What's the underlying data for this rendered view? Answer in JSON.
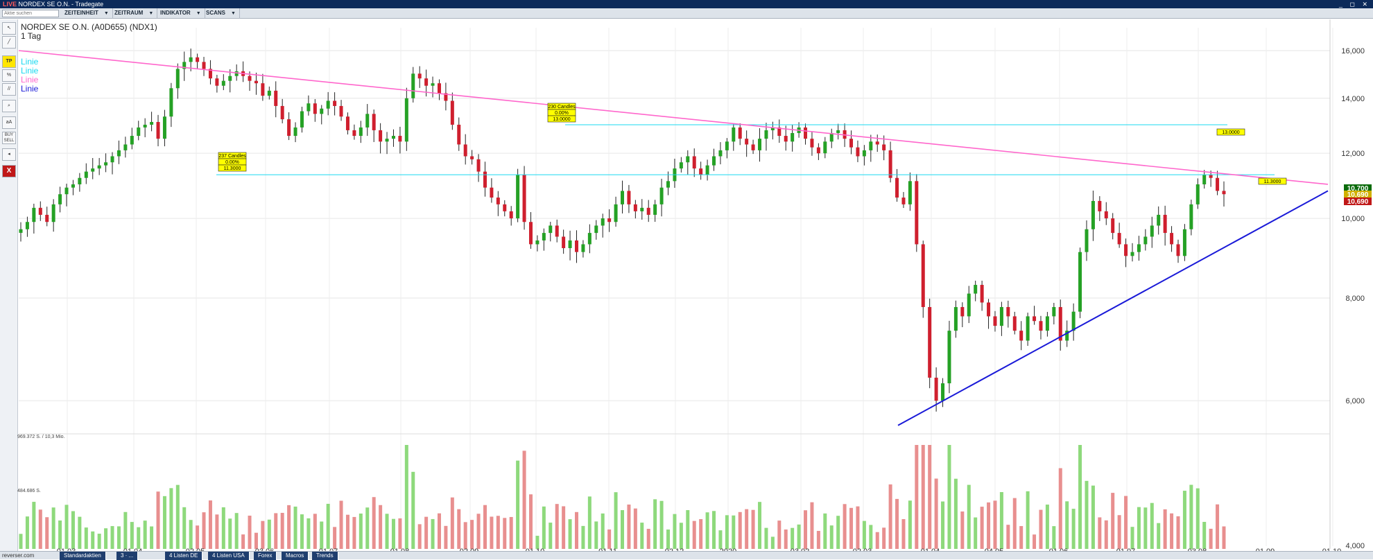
{
  "window": {
    "live_tag": "LIVE",
    "title": "NORDEX SE O.N. - Tradegate",
    "controls": "_ ◻ ✕"
  },
  "toolbar": {
    "search_placeholder": "Aktie suchen",
    "menus": [
      "ZEITEINHEIT",
      "ZEITRAUM",
      "INDIKATOR",
      "SCANS"
    ]
  },
  "left_tools": [
    "cursor-icon",
    "line-icon",
    "TP",
    "percent-icon",
    "parallel-icon",
    "zoom-icon",
    "aA",
    "BUY SELL",
    "speaker-icon",
    "X"
  ],
  "chart_info": {
    "instrument": "NORDEX SE O.N. (A0D655) (NDX1)",
    "interval": "1 Tag"
  },
  "legend": [
    {
      "label": "Linie",
      "color": "#19d9f0"
    },
    {
      "label": "Linie",
      "color": "#19d9f0"
    },
    {
      "label": "Linie",
      "color": "#ff66cc"
    },
    {
      "label": "Linie",
      "color": "#1a1ad8"
    }
  ],
  "annotations": {
    "a1": {
      "l1": "237 Candles",
      "l2": "0.00%",
      "l3": "11.3000"
    },
    "a2": {
      "l1": "230 Candles",
      "l2": "0.00%",
      "l3": "13.0000"
    },
    "a3": "13.0000",
    "a4": "11.3000"
  },
  "price_labels": {
    "last": "10,700",
    "mid": "10,690",
    "bid": "10,690"
  },
  "volume_labels": {
    "top": "969.372 S. / 10,3 Mio.",
    "mid": "484.686 S."
  },
  "bottom": {
    "status": "reverser.com",
    "tabs": [
      "Standardaktien",
      "3 · ...",
      "4 Listen DE",
      "4 Listen USA",
      "Forex",
      "Macros",
      "Trends"
    ]
  },
  "colors": {
    "up": "#25a125",
    "down": "#cf1f2e",
    "vol_up": "#8ed97c",
    "vol_down": "#e88f8f",
    "cyan": "#19d9f0",
    "pink": "#ff66cc",
    "blue": "#1a1ad8"
  },
  "chart_data": {
    "type": "candlestick",
    "title": "NORDEX SE O.N. (A0D655) (NDX1)",
    "interval": "1 Tag",
    "y_scale": "log",
    "ylim": [
      4.0,
      16.0
    ],
    "y_ticks": [
      "16,000",
      "14,000",
      "12,000",
      "10,000",
      "8,000",
      "6,000",
      "4,000"
    ],
    "x_ticks": [
      "01.03.",
      "01.04.",
      "02.05.",
      "03.06.",
      "01.07.",
      "01.08.",
      "02.09.",
      "01.10.",
      "01.11.",
      "02.12.",
      "2020",
      "03.02.",
      "02.03.",
      "01.04.",
      "04.05.",
      "01.06.",
      "01.07.",
      "03.08.",
      "01.09.",
      "01.10."
    ],
    "closes": [
      9.7,
      9.9,
      10.3,
      10.1,
      9.9,
      10.4,
      10.7,
      10.9,
      11.0,
      11.2,
      11.4,
      11.5,
      11.6,
      11.7,
      11.9,
      12.1,
      12.3,
      12.6,
      12.9,
      13.0,
      13.1,
      12.5,
      13.3,
      14.4,
      15.2,
      15.5,
      15.7,
      15.5,
      15.2,
      14.8,
      14.5,
      14.7,
      14.9,
      15.1,
      14.9,
      14.7,
      14.6,
      14.1,
      14.3,
      13.7,
      13.2,
      12.6,
      12.9,
      13.5,
      13.8,
      13.4,
      13.6,
      13.9,
      13.7,
      13.3,
      12.8,
      12.6,
      12.9,
      13.4,
      12.8,
      12.4,
      12.5,
      12.6,
      12.4,
      14.0,
      15.0,
      14.8,
      14.5,
      14.6,
      14.2,
      13.9,
      13.0,
      12.3,
      11.9,
      11.8,
      11.4,
      10.9,
      10.6,
      10.4,
      10.2,
      10.0,
      11.3,
      9.9,
      9.3,
      9.4,
      9.6,
      9.8,
      9.5,
      9.2,
      9.4,
      9.1,
      9.3,
      9.6,
      9.8,
      10.0,
      9.9,
      10.4,
      10.8,
      10.4,
      10.2,
      10.3,
      10.1,
      10.4,
      10.9,
      11.1,
      11.5,
      11.7,
      11.9,
      11.5,
      11.3,
      11.6,
      11.9,
      12.1,
      12.4,
      12.9,
      12.5,
      12.3,
      12.1,
      12.5,
      12.8,
      12.9,
      12.6,
      12.4,
      12.7,
      12.9,
      12.5,
      12.2,
      12.0,
      12.4,
      12.7,
      12.8,
      12.5,
      12.2,
      11.9,
      12.1,
      12.4,
      12.3,
      12.1,
      11.2,
      10.6,
      10.4,
      11.1,
      9.3,
      7.8,
      6.4,
      6.0,
      6.3,
      7.3,
      7.8,
      7.6,
      8.1,
      8.3,
      7.9,
      7.6,
      7.4,
      7.8,
      7.6,
      7.3,
      7.1,
      7.6,
      7.5,
      7.3,
      7.6,
      7.8,
      7.1,
      7.3,
      7.7,
      9.1,
      9.7,
      10.5,
      10.2,
      10.0,
      9.6,
      9.3,
      9.0,
      9.1,
      9.3,
      9.5,
      9.8,
      10.1,
      9.6,
      9.3,
      9.0,
      9.7,
      10.4,
      11.0,
      11.3,
      11.2,
      10.8,
      10.7
    ],
    "lines": [
      {
        "name": "Linie",
        "color": "cyan",
        "level": 13.0
      },
      {
        "name": "Linie",
        "color": "cyan",
        "level": 11.3
      },
      {
        "name": "Linie",
        "color": "pink",
        "from": 16.0,
        "to": 11.0
      },
      {
        "name": "Linie",
        "color": "blue",
        "from": 5.6,
        "to": 10.8
      }
    ],
    "volume_axis": [
      "969.372 S. / 10,3 Mio.",
      "484.686 S."
    ]
  }
}
